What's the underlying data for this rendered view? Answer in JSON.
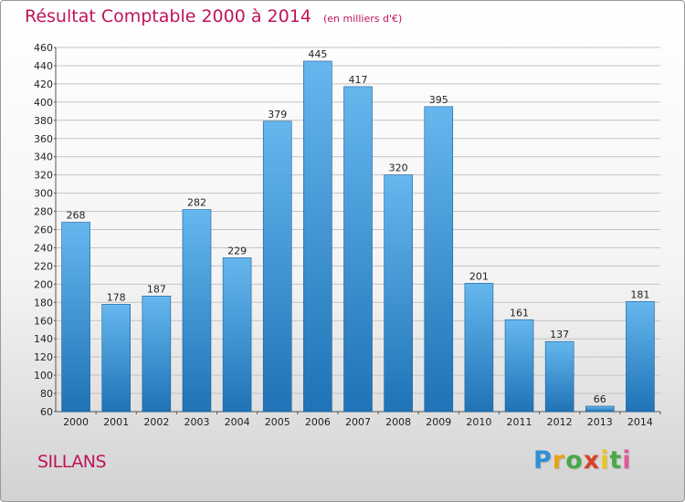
{
  "title": "Résultat Comptable 2000 à 2014",
  "subtitle": "(en milliers d'€)",
  "commune": "SILLANS",
  "logo": {
    "letters": [
      "P",
      "r",
      "o",
      "x",
      "i",
      "t",
      "i"
    ],
    "colors": [
      "#2f8fd6",
      "#e8a317",
      "#4aa84a",
      "#d9412b",
      "#f0c419",
      "#4aa84a",
      "#e05a9a"
    ]
  },
  "colors": {
    "title": "#c0145a",
    "bar_light": "#66b7ee",
    "bar_dark": "#1f73b6",
    "grid": "#c4c4c4"
  },
  "chart_data": {
    "type": "bar",
    "title": "Résultat Comptable 2000 à 2014",
    "subtitle": "(en milliers d'€)",
    "xlabel": "",
    "ylabel": "",
    "categories": [
      "2000",
      "2001",
      "2002",
      "2003",
      "2004",
      "2005",
      "2006",
      "2007",
      "2008",
      "2009",
      "2010",
      "2011",
      "2012",
      "2013",
      "2014"
    ],
    "values": [
      268,
      178,
      187,
      282,
      229,
      379,
      445,
      417,
      320,
      395,
      201,
      161,
      137,
      66,
      181
    ],
    "ylim": [
      60,
      460
    ],
    "ytick_step": 20,
    "grid": true,
    "legend": "none"
  }
}
